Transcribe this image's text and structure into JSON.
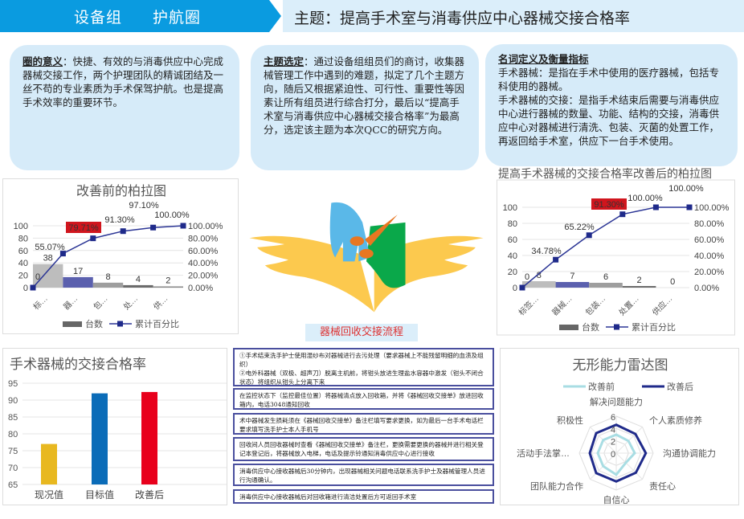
{
  "header": {
    "group": "设备组",
    "circle": "护航圈",
    "theme": "主题：提高手术室与消毒供应中心器械交接合格率"
  },
  "cards": [
    {
      "heading": "圈的意义",
      "body": "：快捷、有效的与消毒供应中心完成器械交接工作，两个护理团队的精诚团结及一丝不苟的专业素质为手术保驾护航。也是提高手术效率的重要环节。"
    },
    {
      "heading": "主题选定",
      "body": "：通过设备组组员们的商讨，收集器械管理工作中遇到的难题，拟定了几个主题方向，随后又根据紧迫性、可行性、重要性等因素让所有组员进行综合打分，最后以“提高手术室与消毒供应中心器械交接合格率”为最高分，选定该主题为本次QCC的研究方向。"
    },
    {
      "heading": "名词定义及衡量指标",
      "lines": [
        "手术器械：是指在手术中使用的医疗器械，包括专科使用的器械。",
        "手术器械的交接：是指手术结束后需要与消毒供应中心进行器械的数量、功能、结构的交接，消毒供应中心对器械进行清洗、包装、灭菌的处置工作，再返回给手术室，供应下一台手术使用。"
      ]
    }
  ],
  "flow": {
    "title": "器械回收交接流程",
    "steps": [
      "①手术结束洗手护士使用湿纱布对器械进行去污处理（要求器械上不能残留明细的血渍及组织）\n②电外科器械（双极、超声刀）脱离主机前，将钳头放进生理盐水容器中激发（钳头不闭合状态）将组织从钳头上分离下来",
      "在监控状态下（监控最佳位置）将器械清点放入回收箱，并将《器械回收交接单》放进回收箱内，电话3048通知回收",
      "术中器械发生损耗须在《器械回收交接单》备注栏填写要求更换，如为最后一台手术电话栏要求填写洗手护士本人手机号",
      "回收间人员回收器械时查看《器械回收交接单》备注栏，更换需要更换的器械并进行相关登记本登记后，将器械放入电梯，电话及提示铃通知消毒供应中心进行接收",
      "消毒供应中心接收器械后30分钟内，出现器械相关问题电话联系洗手护士及器械管理人员进行沟通确认。",
      "消毒供应中心接收器械后对回收箱进行清洁处置后方可返回手术室"
    ]
  },
  "colors": {
    "header_blue": "#0a9be0",
    "card_bg": "#d6ebf9",
    "line": "#2b3595",
    "highlight_red": "#d0151d"
  },
  "chart_data": [
    {
      "type": "bar",
      "subtype": "pareto",
      "title": "改善前的柏拉图",
      "categories": [
        "标…",
        "器…",
        "包…",
        "处…",
        "供…"
      ],
      "values": [
        38,
        17,
        8,
        4,
        2
      ],
      "cumulative_pct": [
        0,
        55.07,
        79.71,
        91.3,
        97.1,
        100.0
      ],
      "cumulative_labels": [
        "0",
        "55.07%",
        "79.71%",
        "91.30%",
        "97.10%",
        "100.00%"
      ],
      "highlight_index": 2,
      "ylim": [
        0,
        100
      ],
      "yticks": [
        0,
        20,
        40,
        60,
        80,
        100
      ],
      "y2ticks": [
        "0.00%",
        "20.00%",
        "40.00%",
        "60.00%",
        "80.00%",
        "100.00%"
      ],
      "legend": [
        "台数",
        "累计百分比"
      ],
      "legend_position": "bottom",
      "bar_colors": [
        "#bdbdbd",
        "#5b60ae",
        "#9e9e9e",
        "#6b6b6b",
        "#8a8a8a"
      ]
    },
    {
      "type": "bar",
      "subtype": "pareto",
      "title": "提高手术器械的交接合格率改善后的柏拉图",
      "categories": [
        "标签…",
        "器械…",
        "包装…",
        "处置…",
        "供应…"
      ],
      "values": [
        8,
        7,
        6,
        2,
        0
      ],
      "cumulative_pct": [
        0,
        34.78,
        65.22,
        91.3,
        100.0,
        100.0
      ],
      "cumulative_labels": [
        "0",
        "34.78%",
        "65.22%",
        "91.30%",
        "100.00%",
        "100.00%"
      ],
      "highlight_index": 3,
      "ylim": [
        0,
        100
      ],
      "yticks": [
        0,
        20,
        40,
        60,
        80,
        100
      ],
      "y2ticks": [
        "0.00%",
        "20.00%",
        "40.00%",
        "60.00%",
        "80.00%",
        "100.00%"
      ],
      "legend": [
        "台数",
        "累计百分比"
      ],
      "legend_position": "bottom",
      "bar_colors": [
        "#bdbdbd",
        "#5b60ae",
        "#9e9e9e",
        "#6b6b6b",
        "#8a8a8a"
      ]
    },
    {
      "type": "bar",
      "title": "手术器械的交接合格率",
      "categories": [
        "现况值",
        "目标值",
        "改善后"
      ],
      "values": [
        77,
        92,
        92.4
      ],
      "ylim": [
        65,
        95
      ],
      "yticks": [
        65,
        70,
        75,
        80,
        85,
        90,
        95
      ],
      "bar_colors": [
        "#e8b820",
        "#0b6cb8",
        "#e8001c"
      ],
      "grid": true
    },
    {
      "type": "radar",
      "title": "无形能力雷达图",
      "axes": [
        "解决问题能力",
        "个人素质修养",
        "沟通协调能力",
        "责任心",
        "自信心",
        "团队能力合作",
        "活动手法掌…",
        "积极性"
      ],
      "ticks": [
        0,
        2,
        4,
        6
      ],
      "rmax": 6,
      "legend_position": "top",
      "series": [
        {
          "name": "改善前",
          "color": "#a8dde3",
          "values": [
            3,
            2.8,
            3,
            2.2,
            3.5,
            3,
            3,
            3
          ]
        },
        {
          "name": "改善后",
          "color": "#1f2a8a",
          "values": [
            4.6,
            4.4,
            4.8,
            4.5,
            4.6,
            4.6,
            4.3,
            4.6
          ]
        }
      ]
    }
  ]
}
